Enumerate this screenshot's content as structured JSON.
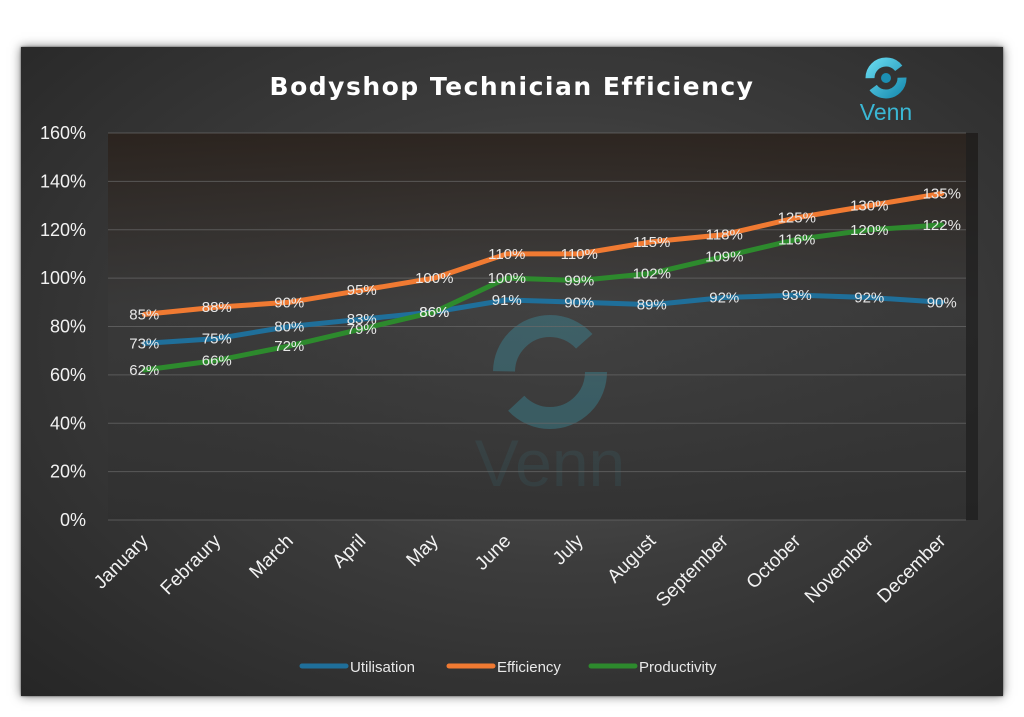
{
  "chart_data": {
    "type": "line",
    "title": "Bodyshop Technician Efficiency",
    "categories": [
      "January",
      "Febraury",
      "March",
      "April",
      "May",
      "June",
      "July",
      "August",
      "September",
      "October",
      "November",
      "December"
    ],
    "ylim": [
      0,
      160
    ],
    "yticks": [
      "0%",
      "20%",
      "40%",
      "60%",
      "80%",
      "100%",
      "120%",
      "140%",
      "160%"
    ],
    "grid": true,
    "legend_position": "bottom",
    "series": [
      {
        "name": "Utilisation",
        "color": "#1f6f9a",
        "values": [
          73,
          75,
          80,
          83,
          86,
          91,
          90,
          89,
          92,
          93,
          92,
          90
        ],
        "labels": [
          "73%",
          "75%",
          "80%",
          "83%",
          "86%",
          "91%",
          "90%",
          "89%",
          "92%",
          "93%",
          "92%",
          "90%"
        ]
      },
      {
        "name": "Efficiency",
        "color": "#f07a32",
        "values": [
          85,
          88,
          90,
          95,
          100,
          110,
          110,
          115,
          118,
          125,
          130,
          135
        ],
        "labels": [
          "85%",
          "88%",
          "90%",
          "95%",
          "100%",
          "110%",
          "110%",
          "115%",
          "118%",
          "125%",
          "130%",
          "135%"
        ]
      },
      {
        "name": "Productivity",
        "color": "#2d8a2d",
        "values": [
          62,
          66,
          72,
          79,
          86,
          100,
          99,
          102,
          109,
          116,
          120,
          122
        ],
        "labels": [
          "62%",
          "66%",
          "72%",
          "79%",
          "86%",
          "100%",
          "99%",
          "102%",
          "109%",
          "116%",
          "120%",
          "122%"
        ]
      }
    ]
  },
  "branding": {
    "logo_text": "Venn",
    "logo_icon": "venn-swirl-icon",
    "watermark_text": "Venn",
    "accent_color": "#3ab7d4"
  }
}
